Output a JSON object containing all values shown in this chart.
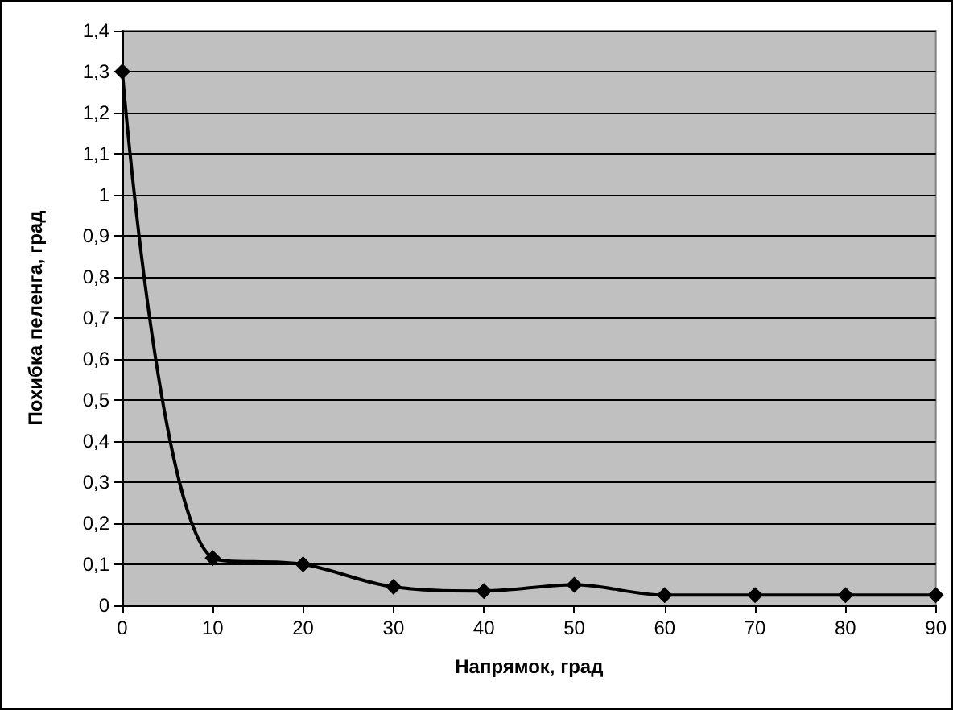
{
  "chart_data": {
    "type": "line",
    "xlabel": "Напрямок, град",
    "ylabel": "Похибка пеленга, град",
    "x": [
      0,
      10,
      20,
      30,
      40,
      50,
      60,
      70,
      80,
      90
    ],
    "series": [
      {
        "color": "#000000",
        "values": [
          1.3,
          0.115,
          0.1,
          0.045,
          0.035,
          0.05,
          0.025,
          0.025,
          0.025,
          0.025
        ]
      }
    ],
    "xlim": [
      0,
      90
    ],
    "xticks": [
      0,
      10,
      20,
      30,
      40,
      50,
      60,
      70,
      80,
      90
    ],
    "ylim": [
      0,
      1.4
    ],
    "yticks": [
      0,
      {
        "value": 0.1,
        "label": "0,1"
      },
      {
        "value": 0.2,
        "label": "0,2"
      },
      {
        "value": 0.3,
        "label": "0,3"
      },
      {
        "value": 0.4,
        "label": "0,4"
      },
      {
        "value": 0.5,
        "label": "0,5"
      },
      {
        "value": 0.6,
        "label": "0,6"
      },
      {
        "value": 0.7,
        "label": "0,7"
      },
      {
        "value": 0.8,
        "label": "0,8"
      },
      {
        "value": 0.9,
        "label": "0,9"
      },
      1,
      {
        "value": 1.1,
        "label": "1,1"
      },
      {
        "value": 1.2,
        "label": "1,2"
      },
      {
        "value": 1.3,
        "label": "1,3"
      },
      {
        "value": 1.4,
        "label": "1,4"
      }
    ],
    "grid": "y",
    "marker": "diamond",
    "line_style": "solid"
  }
}
